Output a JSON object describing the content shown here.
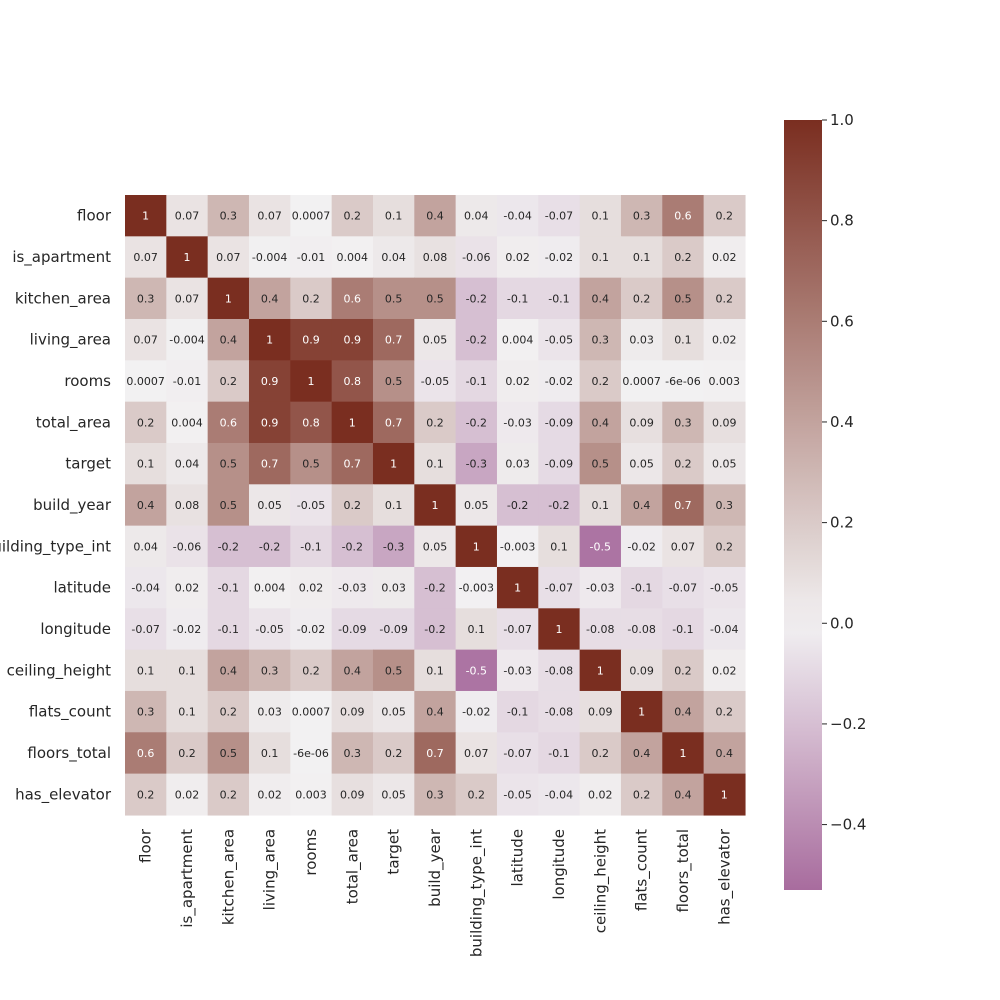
{
  "chart_data": {
    "type": "heatmap",
    "title": "",
    "xlabel": "",
    "ylabel": "",
    "variables": [
      "floor",
      "is_apartment",
      "kitchen_area",
      "living_area",
      "rooms",
      "total_area",
      "target",
      "build_year",
      "building_type_int",
      "latitude",
      "longitude",
      "ceiling_height",
      "flats_count",
      "floors_total",
      "has_elevator"
    ],
    "annotations": [
      [
        "1",
        "0.07",
        "0.3",
        "0.07",
        "0.0007",
        "0.2",
        "0.1",
        "0.4",
        "0.04",
        "-0.04",
        "-0.07",
        "0.1",
        "0.3",
        "0.6",
        "0.2"
      ],
      [
        "0.07",
        "1",
        "0.07",
        "-0.004",
        "-0.01",
        "0.004",
        "0.04",
        "0.08",
        "-0.06",
        "0.02",
        "-0.02",
        "0.1",
        "0.1",
        "0.2",
        "0.02"
      ],
      [
        "0.3",
        "0.07",
        "1",
        "0.4",
        "0.2",
        "0.6",
        "0.5",
        "0.5",
        "-0.2",
        "-0.1",
        "-0.1",
        "0.4",
        "0.2",
        "0.5",
        "0.2"
      ],
      [
        "0.07",
        "-0.004",
        "0.4",
        "1",
        "0.9",
        "0.9",
        "0.7",
        "0.05",
        "-0.2",
        "0.004",
        "-0.05",
        "0.3",
        "0.03",
        "0.1",
        "0.02"
      ],
      [
        "0.0007",
        "-0.01",
        "0.2",
        "0.9",
        "1",
        "0.8",
        "0.5",
        "-0.05",
        "-0.1",
        "0.02",
        "-0.02",
        "0.2",
        "0.0007",
        "-6e-06",
        "0.003"
      ],
      [
        "0.2",
        "0.004",
        "0.6",
        "0.9",
        "0.8",
        "1",
        "0.7",
        "0.2",
        "-0.2",
        "-0.03",
        "-0.09",
        "0.4",
        "0.09",
        "0.3",
        "0.09"
      ],
      [
        "0.1",
        "0.04",
        "0.5",
        "0.7",
        "0.5",
        "0.7",
        "1",
        "0.1",
        "-0.3",
        "0.03",
        "-0.09",
        "0.5",
        "0.05",
        "0.2",
        "0.05"
      ],
      [
        "0.4",
        "0.08",
        "0.5",
        "0.05",
        "-0.05",
        "0.2",
        "0.1",
        "1",
        "0.05",
        "-0.2",
        "-0.2",
        "0.1",
        "0.4",
        "0.7",
        "0.3"
      ],
      [
        "0.04",
        "-0.06",
        "-0.2",
        "-0.2",
        "-0.1",
        "-0.2",
        "-0.3",
        "0.05",
        "1",
        "-0.003",
        "0.1",
        "-0.5",
        "-0.02",
        "0.07",
        "0.2"
      ],
      [
        "-0.04",
        "0.02",
        "-0.1",
        "0.004",
        "0.02",
        "-0.03",
        "0.03",
        "-0.2",
        "-0.003",
        "1",
        "-0.07",
        "-0.03",
        "-0.1",
        "-0.07",
        "-0.05"
      ],
      [
        "-0.07",
        "-0.02",
        "-0.1",
        "-0.05",
        "-0.02",
        "-0.09",
        "-0.09",
        "-0.2",
        "0.1",
        "-0.07",
        "1",
        "-0.08",
        "-0.08",
        "-0.1",
        "-0.04"
      ],
      [
        "0.1",
        "0.1",
        "0.4",
        "0.3",
        "0.2",
        "0.4",
        "0.5",
        "0.1",
        "-0.5",
        "-0.03",
        "-0.08",
        "1",
        "0.09",
        "0.2",
        "0.02"
      ],
      [
        "0.3",
        "0.1",
        "0.2",
        "0.03",
        "0.0007",
        "0.09",
        "0.05",
        "0.4",
        "-0.02",
        "-0.1",
        "-0.08",
        "0.09",
        "1",
        "0.4",
        "0.2"
      ],
      [
        "0.6",
        "0.2",
        "0.5",
        "0.1",
        "-6e-06",
        "0.3",
        "0.2",
        "0.7",
        "0.07",
        "-0.07",
        "-0.1",
        "0.2",
        "0.4",
        "1",
        "0.4"
      ],
      [
        "0.2",
        "0.02",
        "0.2",
        "0.02",
        "0.003",
        "0.09",
        "0.05",
        "0.3",
        "0.2",
        "-0.05",
        "-0.04",
        "0.02",
        "0.2",
        "0.4",
        "1"
      ]
    ],
    "colorbar": {
      "vmin": -0.53,
      "vmax": 1.0,
      "ticks": [
        -0.4,
        -0.2,
        0.0,
        0.2,
        0.4,
        0.6,
        0.8,
        1.0
      ],
      "tick_labels": [
        "−0.4",
        "−0.2",
        "0.0",
        "0.2",
        "0.4",
        "0.6",
        "0.8",
        "1.0"
      ],
      "colors": {
        "negative": "#a86c9e",
        "center": "#f2f1f2",
        "positive": "#7a2e20"
      }
    },
    "grid": false,
    "legend": "colorbar-right"
  }
}
